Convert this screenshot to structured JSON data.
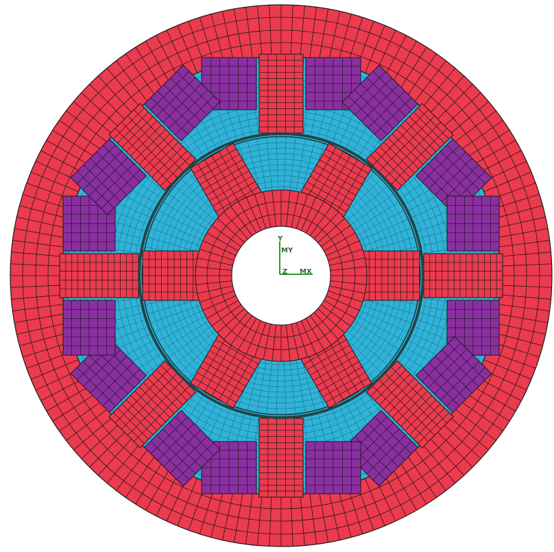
{
  "axis_triad": {
    "y": "Y",
    "my": "MY",
    "z": "Z",
    "mx": "MX"
  }
}
